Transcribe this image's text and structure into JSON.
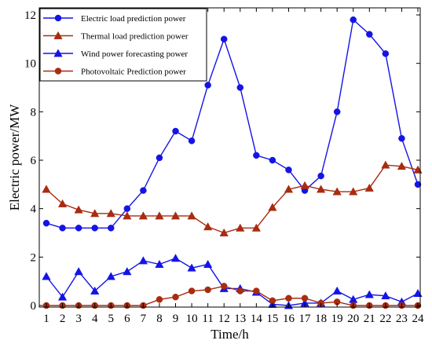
{
  "chart_data": {
    "type": "line",
    "xlabel": "Time/h",
    "ylabel": "Electric power/MW",
    "x": [
      1,
      2,
      3,
      4,
      5,
      6,
      7,
      8,
      9,
      10,
      11,
      12,
      13,
      14,
      15,
      16,
      17,
      18,
      19,
      20,
      21,
      22,
      23,
      24
    ],
    "ylim": [
      0,
      12
    ],
    "yticks": [
      0,
      2,
      4,
      6,
      8,
      10,
      12
    ],
    "legend_position": "top-left",
    "series": [
      {
        "name": "Electric load prediction power",
        "color": "#1414e6",
        "marker": "circle",
        "values": [
          3.4,
          3.2,
          3.2,
          3.2,
          3.2,
          4.0,
          4.75,
          6.1,
          7.2,
          6.8,
          9.1,
          11.0,
          9.0,
          6.2,
          6.0,
          5.6,
          4.75,
          5.35,
          8.0,
          11.8,
          11.2,
          10.4,
          6.9,
          5.0
        ]
      },
      {
        "name": "Thermal load prediction power",
        "color": "#a82c10",
        "marker": "triangle",
        "values": [
          4.8,
          4.2,
          3.95,
          3.8,
          3.8,
          3.7,
          3.7,
          3.7,
          3.7,
          3.7,
          3.25,
          3.0,
          3.2,
          3.2,
          4.05,
          4.8,
          4.95,
          4.8,
          4.7,
          4.7,
          4.85,
          5.8,
          5.75,
          5.6
        ]
      },
      {
        "name": "Wind power forecasting power",
        "color": "#1414e6",
        "marker": "triangle",
        "values": [
          1.2,
          0.35,
          1.4,
          0.6,
          1.2,
          1.4,
          1.85,
          1.7,
          1.95,
          1.55,
          1.7,
          0.7,
          0.7,
          0.55,
          0.05,
          0.0,
          0.1,
          0.1,
          0.6,
          0.25,
          0.45,
          0.4,
          0.15,
          0.5
        ]
      },
      {
        "name": "Photovoltaic Prediction power",
        "color": "#a82c10",
        "marker": "circle",
        "values": [
          0.0,
          0.0,
          0.0,
          0.0,
          0.0,
          0.0,
          0.0,
          0.25,
          0.35,
          0.6,
          0.65,
          0.8,
          0.6,
          0.6,
          0.2,
          0.3,
          0.3,
          0.1,
          0.15,
          0.0,
          0.0,
          0.0,
          0.0,
          0.0
        ]
      }
    ]
  }
}
